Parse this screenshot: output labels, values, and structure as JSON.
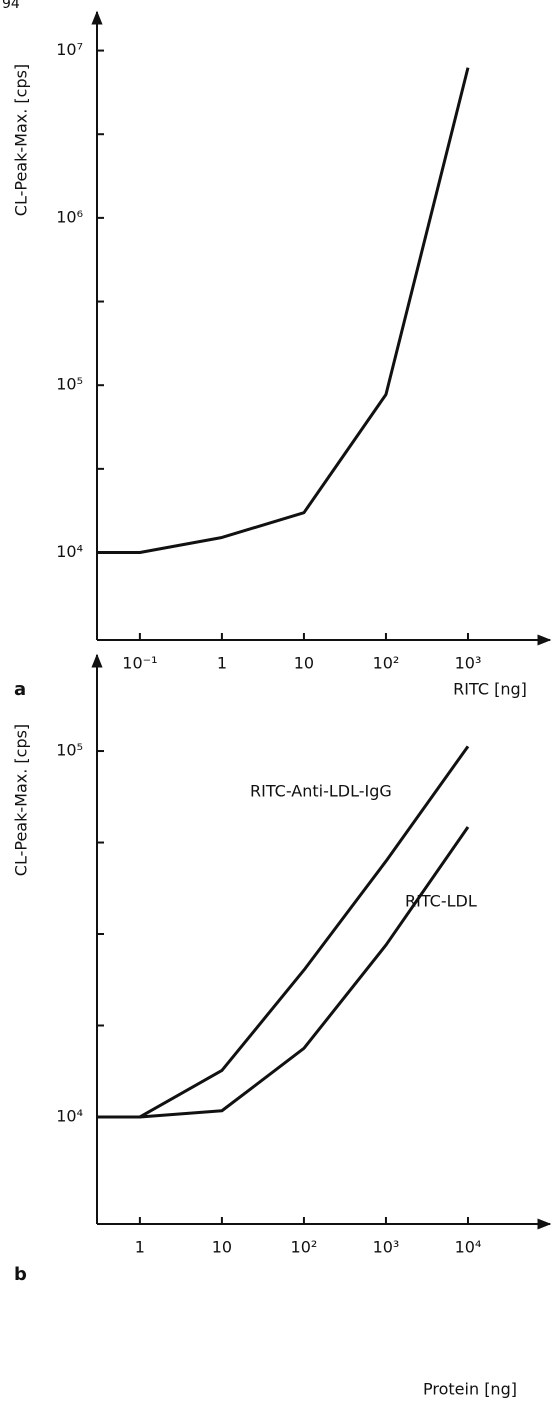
{
  "page_number": "94",
  "chart_data": [
    {
      "type": "line",
      "panel_label": "a",
      "ylabel": "CL-Peak-Max. [cps]",
      "xlabel": "RITC [ng]",
      "log_x": true,
      "log_y": true,
      "x": [
        0.03,
        0.1,
        1,
        10,
        100,
        1000
      ],
      "series": [
        {
          "color": "#111111",
          "values": [
            10000,
            10000,
            12300,
            17300,
            88000,
            7900000
          ]
        }
      ],
      "xlim": [
        0.03,
        10000
      ],
      "ylim": [
        3000,
        17000000
      ],
      "xticks": [
        {
          "value": 0.1,
          "label": "10⁻¹"
        },
        1,
        10,
        {
          "value": 100,
          "label": "10²"
        },
        {
          "value": 1000,
          "label": "10³"
        }
      ],
      "yticks": [
        {
          "value": 10000,
          "label": "10⁴"
        },
        {
          "value": 100000,
          "label": "10⁵"
        },
        {
          "value": 1000000,
          "label": "10⁶"
        },
        {
          "value": 10000000,
          "label": "10⁷"
        }
      ],
      "yminorticks": [
        31623,
        316228,
        3162278
      ]
    },
    {
      "type": "line",
      "panel_label": "b",
      "ylabel": "CL-Peak-Max. [cps]",
      "xlabel": "Protein [ng]",
      "log_x": true,
      "log_y": true,
      "x": [
        0.3,
        1,
        10,
        100,
        1000,
        10000
      ],
      "series": [
        {
          "name": "RITC-Anti-LDL-IgG",
          "color": "#111111",
          "values": [
            10000,
            10000,
            13400,
            25200,
            50000,
            103000
          ]
        },
        {
          "name": "RITC-LDL",
          "color": "#111111",
          "values": [
            10000,
            10000,
            10400,
            15400,
            29500,
            62000
          ]
        }
      ],
      "xlim": [
        0.3,
        100000
      ],
      "ylim": [
        5100,
        183000
      ],
      "xticks": [
        1,
        10,
        {
          "value": 100,
          "label": "10²"
        },
        {
          "value": 1000,
          "label": "10³"
        },
        {
          "value": 10000,
          "label": "10⁴"
        }
      ],
      "yticks": [
        {
          "value": 10000,
          "label": "10⁴"
        },
        {
          "value": 100000,
          "label": "10⁵"
        }
      ],
      "yminorticks": [
        17783,
        31623,
        56234
      ]
    }
  ]
}
